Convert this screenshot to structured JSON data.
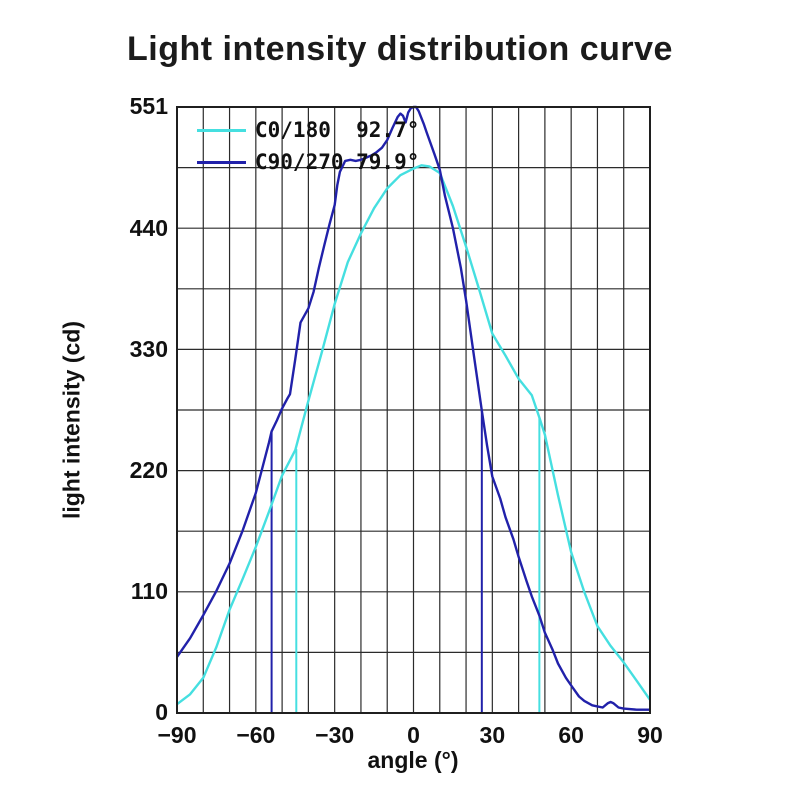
{
  "title": "Light intensity distribution curve",
  "chart_data": {
    "type": "line",
    "title": "Light intensity distribution curve",
    "xlabel": "angle (°)",
    "ylabel": "light intensity (cd)",
    "xlim": [
      -90,
      90
    ],
    "ylim": [
      0,
      551
    ],
    "x_ticks": [
      -90,
      -60,
      -30,
      0,
      30,
      60,
      90
    ],
    "y_ticks": [
      0,
      110,
      220,
      330,
      440,
      551
    ],
    "x_grid_step_deg": 10,
    "y_grid_divisions": 10,
    "grid": true,
    "legend_position": "top-left-inside",
    "background": "#ffffff",
    "grid_color": "#2b2b2b",
    "frame_color": "#1f1f1f",
    "text_color": "#111111",
    "series": [
      {
        "name": "C0/180",
        "label": "C0/180  92.7°",
        "beam_angle_deg": 92.7,
        "color": "#45dfe0",
        "points": [
          [
            -90,
            8
          ],
          [
            -85,
            17
          ],
          [
            -80,
            32
          ],
          [
            -75,
            60
          ],
          [
            -70,
            94
          ],
          [
            -65,
            122
          ],
          [
            -60,
            151
          ],
          [
            -55,
            183
          ],
          [
            -50,
            216
          ],
          [
            -45,
            239
          ],
          [
            -40,
            284
          ],
          [
            -35,
            327
          ],
          [
            -30,
            372
          ],
          [
            -25,
            410
          ],
          [
            -20,
            436
          ],
          [
            -15,
            459
          ],
          [
            -10,
            477
          ],
          [
            -5,
            489
          ],
          [
            0,
            495
          ],
          [
            3,
            498
          ],
          [
            6,
            497
          ],
          [
            10,
            491
          ],
          [
            15,
            461
          ],
          [
            20,
            424
          ],
          [
            25,
            385
          ],
          [
            30,
            345
          ],
          [
            35,
            325
          ],
          [
            40,
            304
          ],
          [
            45,
            289
          ],
          [
            48,
            268
          ],
          [
            50,
            253
          ],
          [
            55,
            198
          ],
          [
            60,
            146
          ],
          [
            65,
            110
          ],
          [
            70,
            79
          ],
          [
            75,
            61
          ],
          [
            80,
            46
          ],
          [
            85,
            29
          ],
          [
            90,
            12
          ]
        ]
      },
      {
        "name": "C90/270",
        "label": "C90/270 79.9°",
        "beam_angle_deg": 79.9,
        "color": "#2121aa",
        "points": [
          [
            -90,
            51
          ],
          [
            -85,
            68
          ],
          [
            -80,
            89
          ],
          [
            -75,
            111
          ],
          [
            -70,
            136
          ],
          [
            -65,
            166
          ],
          [
            -60,
            200
          ],
          [
            -55,
            246
          ],
          [
            -54,
            256
          ],
          [
            -52,
            266
          ],
          [
            -50,
            277
          ],
          [
            -48,
            286
          ],
          [
            -47,
            290
          ],
          [
            -45,
            322
          ],
          [
            -43,
            355
          ],
          [
            -40,
            368
          ],
          [
            -38,
            383
          ],
          [
            -36,
            405
          ],
          [
            -34,
            425
          ],
          [
            -32,
            444
          ],
          [
            -30,
            462
          ],
          [
            -29,
            480
          ],
          [
            -28,
            492
          ],
          [
            -26,
            502
          ],
          [
            -24,
            503
          ],
          [
            -22,
            502
          ],
          [
            -20,
            503
          ],
          [
            -18,
            505
          ],
          [
            -16,
            507
          ],
          [
            -14,
            510
          ],
          [
            -12,
            514
          ],
          [
            -10,
            521
          ],
          [
            -8,
            532
          ],
          [
            -6,
            542
          ],
          [
            -5,
            545
          ],
          [
            -4,
            543
          ],
          [
            -3,
            537
          ],
          [
            -2,
            546
          ],
          [
            -1,
            550
          ],
          [
            0,
            551
          ],
          [
            1,
            551
          ],
          [
            2,
            547
          ],
          [
            4,
            535
          ],
          [
            5,
            528
          ],
          [
            8,
            508
          ],
          [
            10,
            494
          ],
          [
            12,
            470
          ],
          [
            15,
            441
          ],
          [
            18,
            405
          ],
          [
            20,
            375
          ],
          [
            23,
            325
          ],
          [
            26,
            275
          ],
          [
            28,
            243
          ],
          [
            30,
            215
          ],
          [
            33,
            195
          ],
          [
            35,
            178
          ],
          [
            38,
            158
          ],
          [
            40,
            142
          ],
          [
            43,
            120
          ],
          [
            45,
            106
          ],
          [
            48,
            88
          ],
          [
            50,
            73
          ],
          [
            53,
            57
          ],
          [
            55,
            45
          ],
          [
            58,
            32
          ],
          [
            60,
            25
          ],
          [
            63,
            15
          ],
          [
            65,
            11
          ],
          [
            68,
            7
          ],
          [
            70,
            6
          ],
          [
            72,
            5
          ],
          [
            74,
            9
          ],
          [
            75,
            10
          ],
          [
            76,
            9
          ],
          [
            78,
            5
          ],
          [
            80,
            4
          ],
          [
            85,
            3
          ],
          [
            90,
            3
          ]
        ]
      }
    ],
    "beam_angle_markers": [
      {
        "series": "C0/180",
        "angle": -44.6,
        "top_value": 240,
        "color": "#45dfe0"
      },
      {
        "series": "C0/180",
        "angle": 47.9,
        "top_value": 268,
        "color": "#45dfe0"
      },
      {
        "series": "C90/270",
        "angle": -54.0,
        "top_value": 256,
        "color": "#2121aa"
      },
      {
        "series": "C90/270",
        "angle": 26.0,
        "top_value": 275,
        "color": "#2121aa"
      }
    ]
  }
}
